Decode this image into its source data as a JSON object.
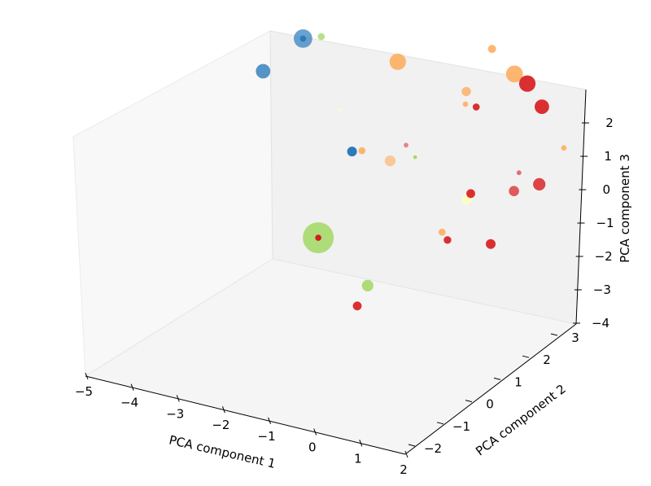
{
  "chart_data": {
    "type": "scatter",
    "projection": "3d",
    "title": "",
    "xlabel": "PCA component 1",
    "ylabel": "PCA component 2",
    "zlabel": "PCA component 3",
    "xlim": [
      -5,
      2
    ],
    "ylim": [
      -2,
      3
    ],
    "zlim": [
      -4,
      2
    ],
    "x_ticks": [
      "−5",
      "−4",
      "−3",
      "−2",
      "−1",
      "0",
      "1",
      "2"
    ],
    "y_ticks": [
      "−2",
      "−1",
      "0",
      "1",
      "2",
      "3"
    ],
    "z_ticks": [
      "−4",
      "−3",
      "−2",
      "−1",
      "0",
      "1",
      "2"
    ],
    "grid": false,
    "legend": "none",
    "color_scale": {
      "blue": "#2b7bba",
      "light_green": "#a6d96a",
      "light_orange": "#fdae61",
      "red": "#d7191c",
      "pale_yellow": "#ffffbf"
    },
    "points": [
      {
        "x": -3.9,
        "y": 1.6,
        "z": 1.3,
        "size": 180,
        "color": "#2b7bba",
        "alpha": 0.7
      },
      {
        "x": -3.9,
        "y": 1.6,
        "z": 1.3,
        "size": 20,
        "color": "#2b7bba",
        "alpha": 1.0
      },
      {
        "x": -3.5,
        "y": 1.6,
        "z": 1.5,
        "size": 25,
        "color": "#a6d96a",
        "alpha": 0.8
      },
      {
        "x": -4.2,
        "y": 0.9,
        "z": 0.7,
        "size": 110,
        "color": "#2b7bba",
        "alpha": 0.8
      },
      {
        "x": -2.4,
        "y": 2.3,
        "z": 0.6,
        "size": 140,
        "color": "#fdae61",
        "alpha": 0.9
      },
      {
        "x": -3.0,
        "y": 1.5,
        "z": -0.5,
        "size": 5,
        "color": "#ffffbf",
        "alpha": 0.8
      },
      {
        "x": -2.5,
        "y": 1.2,
        "z": -1.4,
        "size": 50,
        "color": "#2b7bba",
        "alpha": 1.0
      },
      {
        "x": -2.2,
        "y": 1.1,
        "z": -1.2,
        "size": 25,
        "color": "#fdae61",
        "alpha": 0.9
      },
      {
        "x": -1.5,
        "y": 1.0,
        "z": -1.2,
        "size": 60,
        "color": "#fdae61",
        "alpha": 0.6
      },
      {
        "x": -1.2,
        "y": 1.3,
        "z": -1.2,
        "size": 8,
        "color": "#a6d96a",
        "alpha": 1.0
      },
      {
        "x": -2.3,
        "y": 2.4,
        "z": -2.0,
        "size": 12,
        "color": "#d7191c",
        "alpha": 0.5
      },
      {
        "x": -0.5,
        "y": 2.5,
        "z": 1.5,
        "size": 35,
        "color": "#fdae61",
        "alpha": 0.9
      },
      {
        "x": -0.9,
        "y": 2.3,
        "z": 0.2,
        "size": 45,
        "color": "#fdae61",
        "alpha": 0.8
      },
      {
        "x": -1.0,
        "y": 2.4,
        "z": -0.3,
        "size": 15,
        "color": "#fdae61",
        "alpha": 0.9
      },
      {
        "x": -0.6,
        "y": 2.2,
        "z": -0.1,
        "size": 25,
        "color": "#d7191c",
        "alpha": 0.9
      },
      {
        "x": 0.4,
        "y": 2.0,
        "z": 1.4,
        "size": 150,
        "color": "#fdae61",
        "alpha": 0.9
      },
      {
        "x": 0.6,
        "y": 2.1,
        "z": 1.1,
        "size": 140,
        "color": "#d7191c",
        "alpha": 0.9
      },
      {
        "x": 1.0,
        "y": 2.0,
        "z": 0.6,
        "size": 110,
        "color": "#d7191c",
        "alpha": 0.9
      },
      {
        "x": 1.4,
        "y": 2.1,
        "z": -0.6,
        "size": 15,
        "color": "#fdae61",
        "alpha": 0.9
      },
      {
        "x": 1.6,
        "y": 1.2,
        "z": -1.0,
        "size": 80,
        "color": "#d7191c",
        "alpha": 0.8
      },
      {
        "x": 0.5,
        "y": 2.0,
        "z": -1.6,
        "size": 12,
        "color": "#d7191c",
        "alpha": 0.6
      },
      {
        "x": 0.1,
        "y": 1.2,
        "z": -1.8,
        "size": 40,
        "color": "#d7191c",
        "alpha": 0.9
      },
      {
        "x": 0.1,
        "y": 1.1,
        "z": -1.9,
        "size": 60,
        "color": "#ffffbf",
        "alpha": 0.8
      },
      {
        "x": 0.8,
        "y": 1.5,
        "z": -1.7,
        "size": 55,
        "color": "#d7191c",
        "alpha": 0.7
      },
      {
        "x": -0.2,
        "y": 0.8,
        "z": -2.8,
        "size": 25,
        "color": "#fdae61",
        "alpha": 0.9
      },
      {
        "x": 0.0,
        "y": 0.7,
        "z": -2.9,
        "size": 30,
        "color": "#d7191c",
        "alpha": 0.9
      },
      {
        "x": 0.7,
        "y": 1.0,
        "z": -3.0,
        "size": 50,
        "color": "#d7191c",
        "alpha": 0.9
      },
      {
        "x": -1.6,
        "y": -0.8,
        "z": -2.3,
        "size": 500,
        "color": "#a6d96a",
        "alpha": 0.9
      },
      {
        "x": -1.6,
        "y": -0.8,
        "z": -2.3,
        "size": 20,
        "color": "#d7191c",
        "alpha": 1.0
      },
      {
        "x": -0.6,
        "y": -0.7,
        "z": -3.5,
        "size": 70,
        "color": "#a6d96a",
        "alpha": 0.9
      },
      {
        "x": -0.5,
        "y": -1.1,
        "z": -3.8,
        "size": 40,
        "color": "#d7191c",
        "alpha": 0.9
      }
    ]
  }
}
